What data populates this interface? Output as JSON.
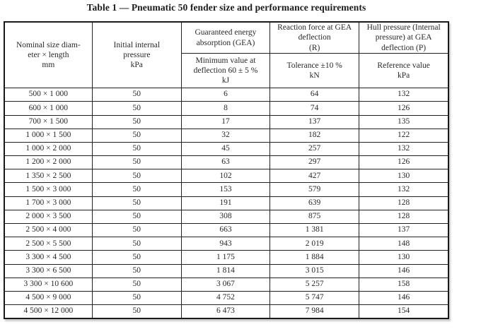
{
  "page": {
    "title": "Table 1 — Pneumatic 50 fender size and performance requirements"
  },
  "table": {
    "headers": {
      "col1": [
        "Nominal size diam-",
        "eter × length",
        "mm"
      ],
      "col2": [
        "Initial internal",
        "pressure",
        "kPa"
      ],
      "col3_top": [
        "Guaranteed energy",
        "absorption (GEA)"
      ],
      "col3_sub": [
        "Minimum value at",
        "deflection 60 ± 5 %",
        "kJ"
      ],
      "col4_top": [
        "Reaction force at GEA",
        "deflection",
        "(R)"
      ],
      "col4_sub": [
        "Tolerance ±10 %",
        "kN"
      ],
      "col5_top": [
        "Hull pressure (Internal",
        "pressure) at GEA",
        "deflection (P)"
      ],
      "col5_sub": [
        "Reference value",
        "kPa"
      ]
    },
    "rows": [
      [
        "500 × 1 000",
        "50",
        "6",
        "64",
        "132"
      ],
      [
        "600 × 1 000",
        "50",
        "8",
        "74",
        "126"
      ],
      [
        "700 × 1 500",
        "50",
        "17",
        "137",
        "135"
      ],
      [
        "1 000 × 1 500",
        "50",
        "32",
        "182",
        "122"
      ],
      [
        "1 000 × 2 000",
        "50",
        "45",
        "257",
        "132"
      ],
      [
        "1 200 × 2 000",
        "50",
        "63",
        "297",
        "126"
      ],
      [
        "1 350 × 2 500",
        "50",
        "102",
        "427",
        "130"
      ],
      [
        "1 500 × 3 000",
        "50",
        "153",
        "579",
        "132"
      ],
      [
        "1 700 × 3 000",
        "50",
        "191",
        "639",
        "128"
      ],
      [
        "2 000 × 3 500",
        "50",
        "308",
        "875",
        "128"
      ],
      [
        "2 500 × 4 000",
        "50",
        "663",
        "1 381",
        "137"
      ],
      [
        "2 500 × 5 500",
        "50",
        "943",
        "2 019",
        "148"
      ],
      [
        "3 300 × 4 500",
        "50",
        "1 175",
        "1 884",
        "130"
      ],
      [
        "3 300 × 6 500",
        "50",
        "1 814",
        "3 015",
        "146"
      ],
      [
        "3 300 × 10 600",
        "50",
        "3 067",
        "5 257",
        "158"
      ],
      [
        "4 500 × 9 000",
        "50",
        "4 752",
        "5 747",
        "146"
      ],
      [
        "4 500 × 12 000",
        "50",
        "6 473",
        "7 984",
        "154"
      ]
    ]
  }
}
